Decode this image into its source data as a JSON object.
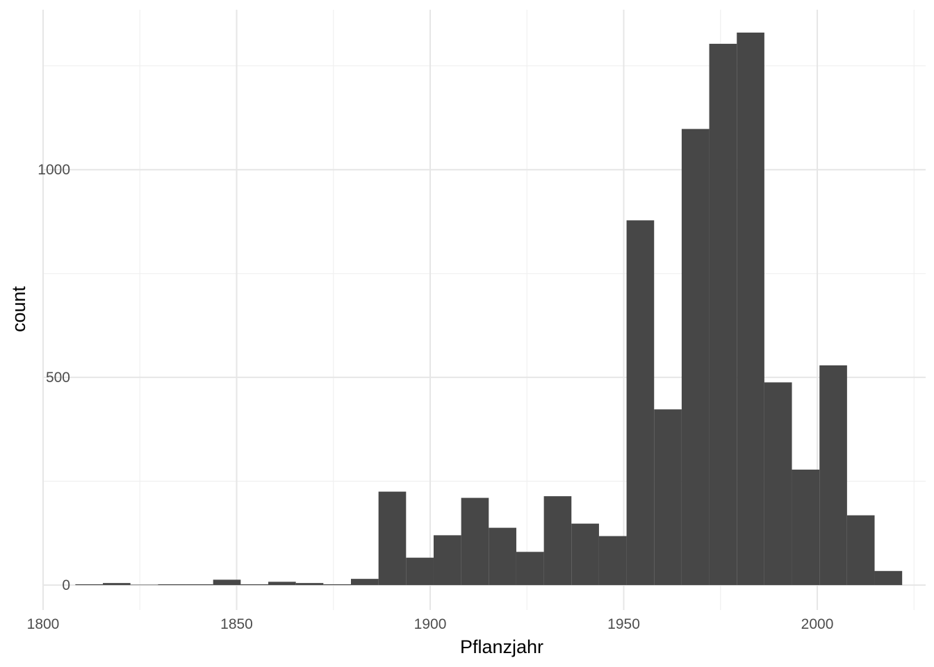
{
  "chart_data": {
    "type": "bar",
    "xlabel": "Pflanzjahr",
    "ylabel": "count",
    "xlim": [
      1800,
      2028
    ],
    "ylim": [
      -60,
      1385
    ],
    "x_ticks": [
      1800,
      1850,
      1900,
      1950,
      2000
    ],
    "y_ticks": [
      0,
      500,
      1000
    ],
    "grid": true,
    "bin_width": 7.12,
    "bin_starts": [
      1808.33,
      1815.45,
      1822.57,
      1829.69,
      1836.81,
      1843.93,
      1851.05,
      1858.17,
      1865.29,
      1872.41,
      1879.53,
      1886.65,
      1893.77,
      1900.89,
      1908.01,
      1915.13,
      1922.25,
      1929.37,
      1936.49,
      1943.61,
      1950.73,
      1957.85,
      1964.97,
      1972.09,
      1979.21,
      1986.33,
      1993.45,
      2000.57,
      2007.69,
      2014.81
    ],
    "counts": [
      1,
      5,
      0,
      1,
      1,
      13,
      1,
      8,
      5,
      2,
      15,
      225,
      66,
      120,
      210,
      138,
      80,
      214,
      148,
      118,
      878,
      423,
      1098,
      1303,
      1330,
      488,
      278,
      529,
      168,
      34
    ],
    "colors": {
      "bar": "#474747",
      "grid_major": "#e6e6e6",
      "grid_minor": "#f0f0f0",
      "background": "#ffffff"
    }
  }
}
